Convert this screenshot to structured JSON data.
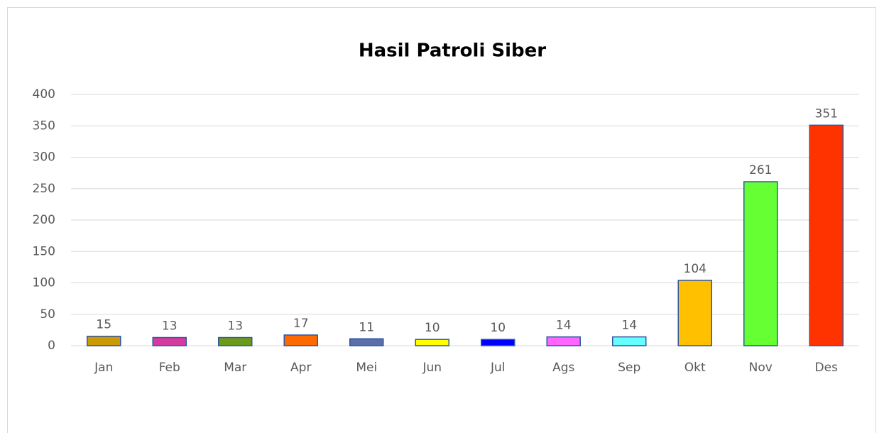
{
  "chart_data": {
    "type": "bar",
    "title": "Hasil Patroli Siber",
    "categories": [
      "Jan",
      "Feb",
      "Mar",
      "Apr",
      "Mei",
      "Jun",
      "Jul",
      "Ags",
      "Sep",
      "Okt",
      "Nov",
      "Des"
    ],
    "values": [
      15,
      13,
      13,
      17,
      11,
      10,
      10,
      14,
      14,
      104,
      261,
      351
    ],
    "colors": [
      "#cc9a06",
      "#d63aa0",
      "#6b9a1a",
      "#ff6a00",
      "#5b6fa8",
      "#ffff00",
      "#0000ff",
      "#ff66ff",
      "#66ffff",
      "#ffc000",
      "#66ff33",
      "#ff3300"
    ],
    "ylim": [
      0,
      400
    ],
    "yticks": [
      0,
      50,
      100,
      150,
      200,
      250,
      300,
      350,
      400
    ],
    "grid": true
  }
}
